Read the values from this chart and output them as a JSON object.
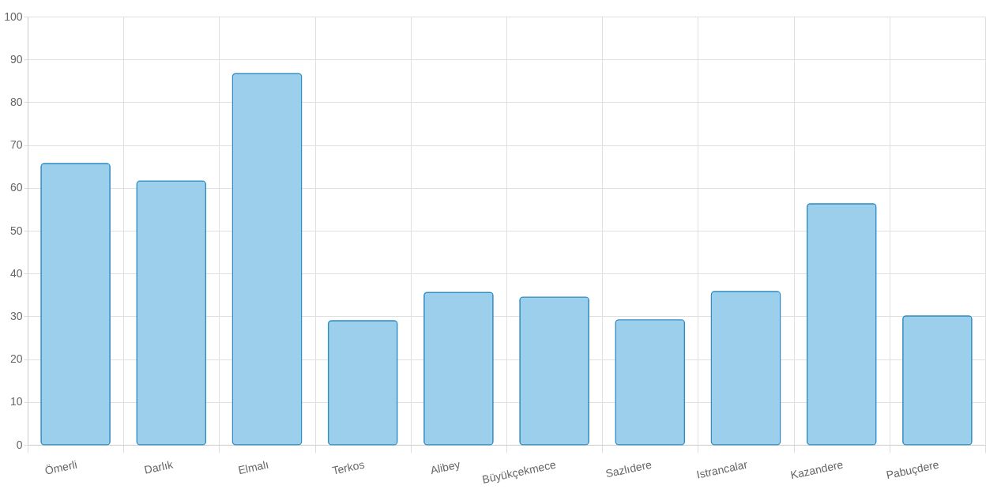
{
  "chart_data": {
    "type": "bar",
    "categories": [
      "Ömerli",
      "Darlık",
      "Elmalı",
      "Terkos",
      "Alibey",
      "Büyükçekmece",
      "Sazlıdere",
      "Istrancalar",
      "Kazandere",
      "Pabuçdere"
    ],
    "values": [
      65.7,
      61.6,
      86.7,
      29.0,
      35.6,
      34.5,
      29.2,
      35.8,
      56.3,
      30.1
    ],
    "color": "#9bcfeb",
    "ylim": [
      0,
      100
    ],
    "yticks": [
      0,
      10,
      20,
      30,
      40,
      50,
      60,
      70,
      80,
      90,
      100
    ],
    "grid": true
  }
}
